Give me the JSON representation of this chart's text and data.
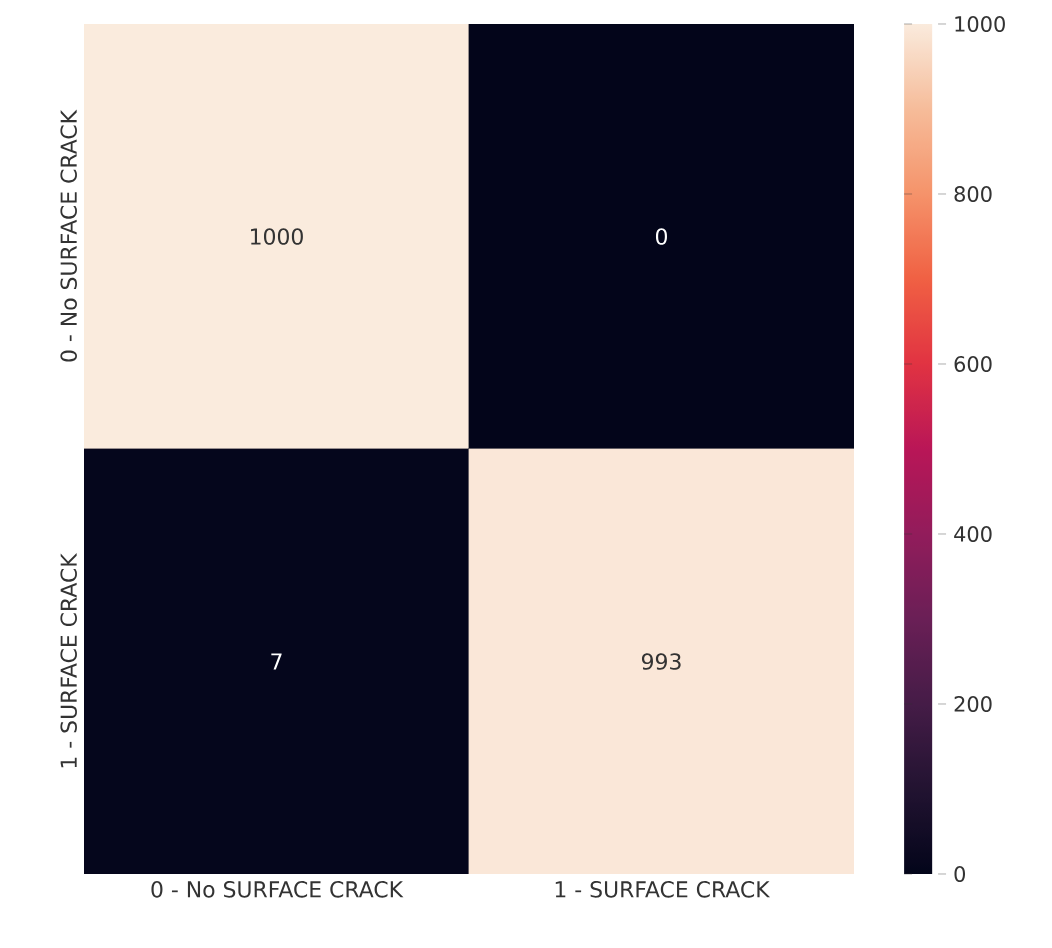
{
  "chart_data": {
    "type": "heatmap",
    "categories": [
      "0 - No SURFACE CRACK",
      "1 - SURFACE CRACK"
    ],
    "y_categories": [
      "0 - No SURFACE CRACK",
      "1 - SURFACE CRACK"
    ],
    "cells": [
      [
        1000,
        0
      ],
      [
        7,
        993
      ]
    ],
    "data_labels": true,
    "clim": [
      0,
      1000
    ],
    "cticks": [
      0,
      200,
      400,
      600,
      800,
      1000
    ]
  }
}
